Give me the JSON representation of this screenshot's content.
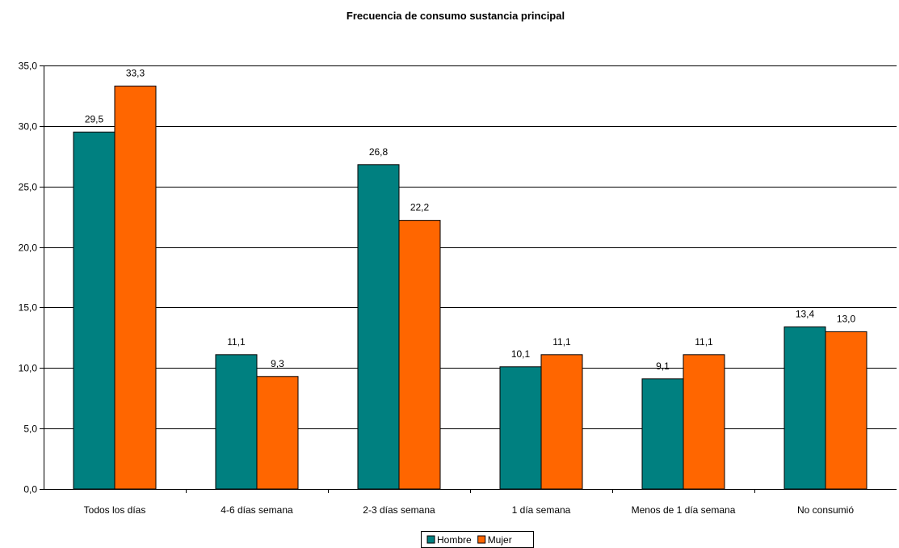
{
  "chart_data": {
    "type": "bar",
    "title": "Frecuencia de consumo sustancia principal",
    "categories": [
      "Todos los días",
      "4-6 días semana",
      "2-3 días semana",
      "1 día semana",
      "Menos de 1 día semana",
      "No consumió"
    ],
    "series": [
      {
        "name": "Hombre",
        "values": [
          29.5,
          11.1,
          26.8,
          10.1,
          9.1,
          13.4
        ],
        "labels": [
          "29,5",
          "11,1",
          "26,8",
          "10,1",
          "9,1",
          "13,4"
        ],
        "color": "#008080"
      },
      {
        "name": "Mujer",
        "values": [
          33.3,
          9.3,
          22.2,
          11.1,
          11.1,
          13.0
        ],
        "labels": [
          "33,3",
          "9,3",
          "22,2",
          "11,1",
          "11,1",
          "13,0"
        ],
        "color": "#FF6600"
      }
    ],
    "yticks": [
      0,
      5,
      10,
      15,
      20,
      25,
      30,
      35
    ],
    "ytick_labels": [
      "0,0",
      "5,0",
      "10,0",
      "15,0",
      "20,0",
      "25,0",
      "30,0",
      "35,0"
    ],
    "ylim": [
      0,
      35
    ],
    "grid": true,
    "legend_position": "bottom"
  }
}
